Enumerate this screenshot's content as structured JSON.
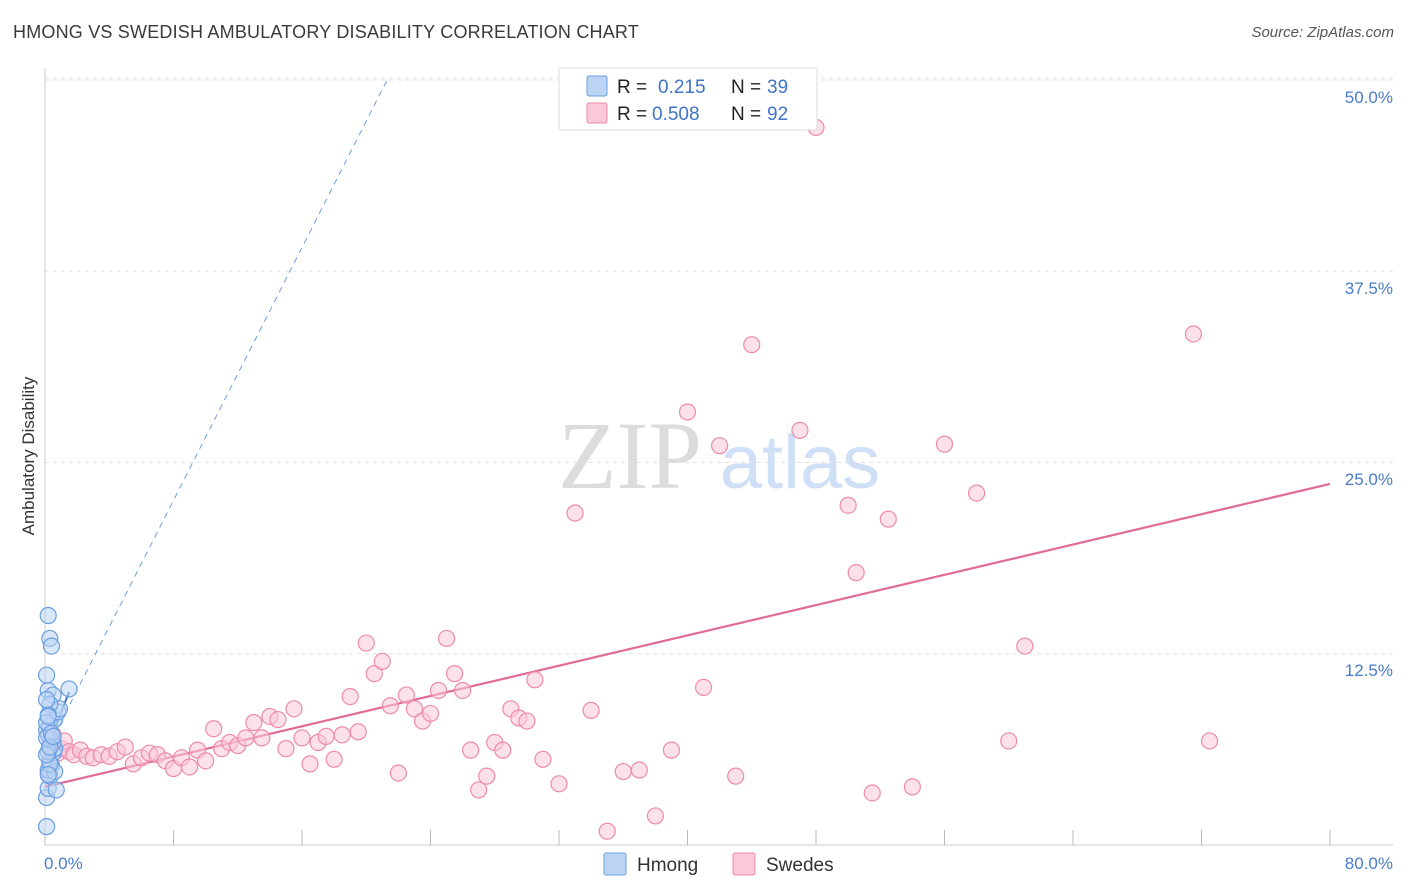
{
  "title": "HMONG VS SWEDISH AMBULATORY DISABILITY CORRELATION CHART",
  "source": "Source: ZipAtlas.com",
  "watermark": {
    "zip": "ZIP",
    "atlas": "atlas"
  },
  "colors": {
    "hmong": "#6a9fe0",
    "hmong_fill": "#bcd4f4",
    "swedes": "#ee8aaa",
    "swedes_fill": "#f9c9d8",
    "swedes_line": "#e26a96",
    "hmong_line": "#3f74c8",
    "tick_text": "#4a7cc9",
    "grid": "#e3e3e3"
  },
  "legend": {
    "r_label": "R =",
    "n_label": "N =",
    "rows": [
      {
        "series": "Hmong",
        "r": "0.215",
        "n": "39"
      },
      {
        "series": "Swedes",
        "r": "0.508",
        "n": "92"
      }
    ]
  },
  "chart_data": {
    "type": "scatter",
    "title": "HMONG VS SWEDISH AMBULATORY DISABILITY CORRELATION CHART",
    "xlabel": "",
    "ylabel": "Ambulatory Disability",
    "xlim": [
      0,
      80
    ],
    "ylim": [
      0,
      52
    ],
    "x_tick_labels": [
      "0.0%",
      "80.0%"
    ],
    "y_ticks": [
      12.5,
      25.0,
      37.5,
      50.0
    ],
    "y_tick_labels": [
      "12.5%",
      "25.0%",
      "37.5%",
      "50.0%"
    ],
    "grid": true,
    "legend_position": "top-center",
    "series": [
      {
        "name": "Hmong",
        "x": [
          0.1,
          0.1,
          0.2,
          0.3,
          0.2,
          0.4,
          0.3,
          0.5,
          0.6,
          0.5,
          0.4,
          0.2,
          0.1,
          0.3,
          0.6,
          0.8,
          0.9,
          1.5,
          0.2,
          0.1,
          0.3,
          0.2,
          0.4,
          0.5,
          0.3,
          0.2,
          0.1,
          0.6,
          0.7,
          0.3,
          0.2,
          0.1,
          0.4,
          0.2,
          0.1,
          0.3,
          0.5,
          0.2,
          0.1
        ],
        "y": [
          1.2,
          3.1,
          3.7,
          4.5,
          4.9,
          5.2,
          5.5,
          6.0,
          6.3,
          6.7,
          6.9,
          7.2,
          7.5,
          7.8,
          8.2,
          8.7,
          8.9,
          10.2,
          10.1,
          11.1,
          13.5,
          15.0,
          13.0,
          9.8,
          9.2,
          8.5,
          8.0,
          4.8,
          3.6,
          5.3,
          6.1,
          7.0,
          7.3,
          4.6,
          5.9,
          6.4,
          7.1,
          8.4,
          9.5
        ],
        "trend": {
          "x": [
            0,
            1.5
          ],
          "y": [
            6.0,
            10.0
          ]
        },
        "trend_extended": {
          "x": [
            0,
            21.3
          ],
          "y": [
            6.0,
            50.0
          ]
        }
      },
      {
        "name": "Swedes",
        "x": [
          0.3,
          0.5,
          0.8,
          1.0,
          1.2,
          1.5,
          1.8,
          2.2,
          2.6,
          3.0,
          3.5,
          4.0,
          4.5,
          5.0,
          5.5,
          6.0,
          6.5,
          7.0,
          7.5,
          8.0,
          8.5,
          9.0,
          9.5,
          10.0,
          10.5,
          11.0,
          11.5,
          12.0,
          12.5,
          13.0,
          13.5,
          14.0,
          14.5,
          15.0,
          15.5,
          16.0,
          16.5,
          17.0,
          17.5,
          18.0,
          18.5,
          19.0,
          19.5,
          20.0,
          20.5,
          21.0,
          21.5,
          22.0,
          22.5,
          23.0,
          23.5,
          24.0,
          24.5,
          25.0,
          25.5,
          26.0,
          26.5,
          27.0,
          27.5,
          28.0,
          28.5,
          29.0,
          29.5,
          30.0,
          30.5,
          31.0,
          32.0,
          33.0,
          34.0,
          35.0,
          36.0,
          37.0,
          38.0,
          39.0,
          40.0,
          41.0,
          42.0,
          43.0,
          44.0,
          47.0,
          48.0,
          50.0,
          50.5,
          51.5,
          52.5,
          54.0,
          56.0,
          58.0,
          60.0,
          61.0,
          71.5,
          72.5
        ],
        "y": [
          6.5,
          7.2,
          6.0,
          6.3,
          6.8,
          6.1,
          5.9,
          6.2,
          5.8,
          5.7,
          5.9,
          5.8,
          6.1,
          6.4,
          5.3,
          5.7,
          6.0,
          5.9,
          5.5,
          5.0,
          5.7,
          5.1,
          6.2,
          5.5,
          7.6,
          6.3,
          6.7,
          6.5,
          7.0,
          8.0,
          7.0,
          8.4,
          8.2,
          6.3,
          8.9,
          7.0,
          5.3,
          6.7,
          7.1,
          5.6,
          7.2,
          9.7,
          7.4,
          13.2,
          11.2,
          12.0,
          9.1,
          4.7,
          9.8,
          8.9,
          8.1,
          8.6,
          10.1,
          13.5,
          11.2,
          10.1,
          6.2,
          3.6,
          4.5,
          6.7,
          6.2,
          8.9,
          8.3,
          8.1,
          10.8,
          5.6,
          4.0,
          21.7,
          8.8,
          0.9,
          4.8,
          4.9,
          1.9,
          6.2,
          28.3,
          10.3,
          26.1,
          4.5,
          32.7,
          27.1,
          46.9,
          22.2,
          17.8,
          3.4,
          21.3,
          3.8,
          26.2,
          23.0,
          6.8,
          13.0,
          33.4,
          6.8
        ],
        "trend": {
          "x": [
            0,
            80
          ],
          "y": [
            3.8,
            23.6
          ]
        }
      }
    ]
  },
  "bottom_legend": [
    {
      "label": "Hmong"
    },
    {
      "label": "Swedes"
    }
  ]
}
